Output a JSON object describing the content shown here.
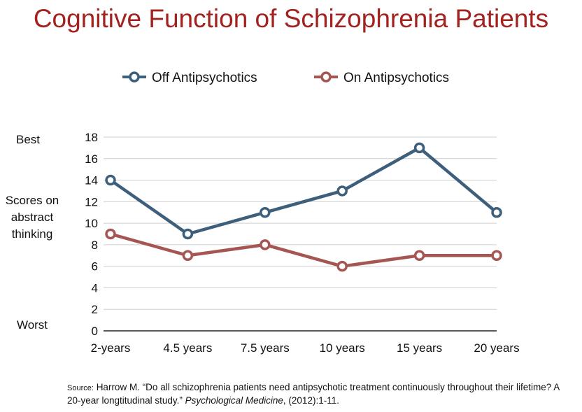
{
  "title": "Cognitive Function of Schizophrenia Patients",
  "colors": {
    "title": "#a3221f",
    "off": "#3e5f7b",
    "on": "#a65652",
    "grid": "#cfcfcf"
  },
  "side_labels": {
    "best": "Best",
    "ylabel_lines": [
      "Scores on",
      "abstract",
      "thinking"
    ],
    "worst": "Worst"
  },
  "source": {
    "label": "Source:",
    "text": "Harrow M. “Do all schizophrenia patients need antipsychotic treatment continuously throughout their lifetime? A 20-year longtitudinal study.” ",
    "journal": "Psychological Medicine",
    "tail": ", (2012):1-11."
  },
  "chart_data": {
    "type": "line",
    "title": "Cognitive Function of Schizophrenia Patients",
    "xlabel": "",
    "ylabel": "Scores on abstract thinking",
    "categories": [
      "2-years",
      "4.5 years",
      "7.5 years",
      "10 years",
      "15 years",
      "20 years"
    ],
    "ylim": [
      0,
      18
    ],
    "yticks": [
      0,
      2,
      4,
      6,
      8,
      10,
      12,
      14,
      16,
      18
    ],
    "grid": true,
    "legend_position": "top",
    "series": [
      {
        "name": "Off Antipsychotics",
        "color": "#3e5f7b",
        "values": [
          14,
          9,
          11,
          13,
          17,
          11
        ]
      },
      {
        "name": "On Antipsychotics",
        "color": "#a65652",
        "values": [
          9,
          7,
          8,
          6,
          7,
          7
        ]
      }
    ]
  }
}
